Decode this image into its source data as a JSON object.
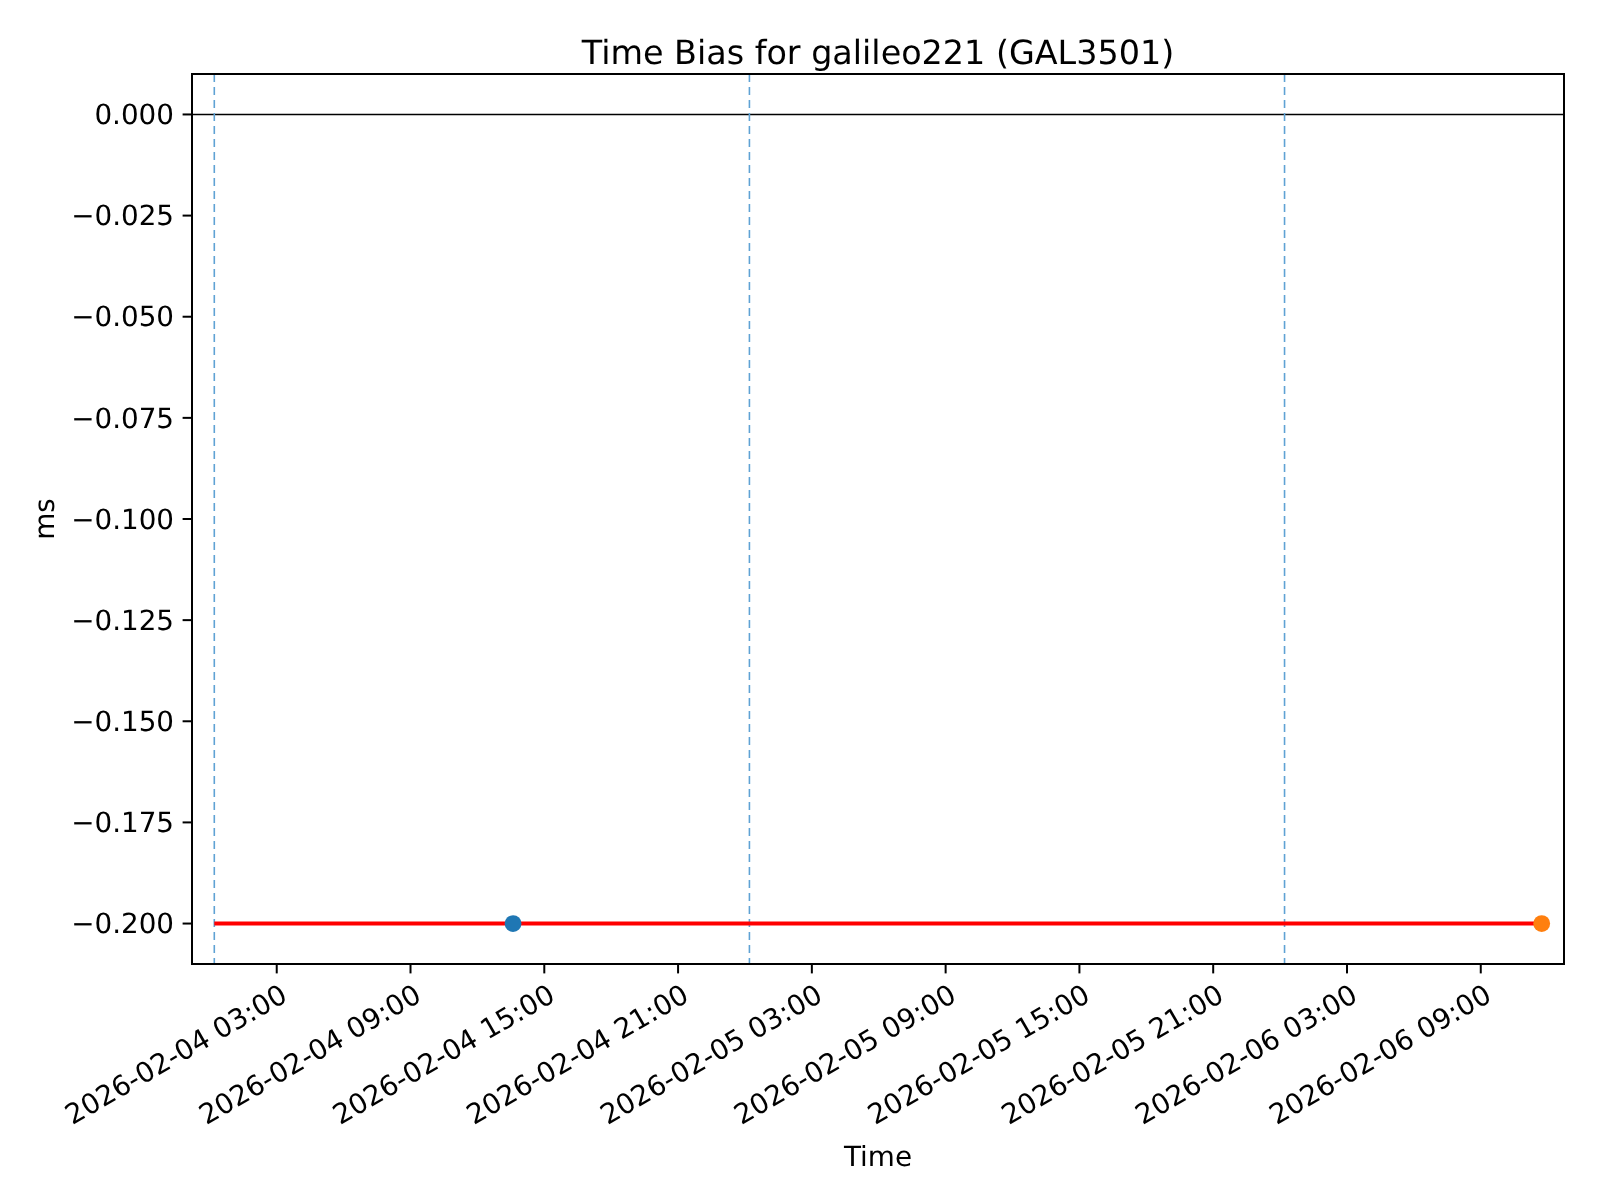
{
  "chart_data": {
    "type": "line",
    "title": "Time Bias for galileo221 (GAL3501)",
    "xlabel": "Time",
    "ylabel": "ms",
    "xlim": [
      "2026-02-03T23:12",
      "2026-02-06T12:44"
    ],
    "xticks": [
      {
        "value": "2026-02-04T03:00",
        "label": "2026-02-04 03:00"
      },
      {
        "value": "2026-02-04T09:00",
        "label": "2026-02-04 09:00"
      },
      {
        "value": "2026-02-04T15:00",
        "label": "2026-02-04 15:00"
      },
      {
        "value": "2026-02-04T21:00",
        "label": "2026-02-04 21:00"
      },
      {
        "value": "2026-02-05T03:00",
        "label": "2026-02-05 03:00"
      },
      {
        "value": "2026-02-05T09:00",
        "label": "2026-02-05 09:00"
      },
      {
        "value": "2026-02-05T15:00",
        "label": "2026-02-05 15:00"
      },
      {
        "value": "2026-02-05T21:00",
        "label": "2026-02-05 21:00"
      },
      {
        "value": "2026-02-06T03:00",
        "label": "2026-02-06 03:00"
      },
      {
        "value": "2026-02-06T09:00",
        "label": "2026-02-06 09:00"
      }
    ],
    "ylim": [
      -0.21,
      0.01
    ],
    "yticks": [
      {
        "value": 0,
        "label": "0.000"
      },
      {
        "value": -0.025,
        "label": "−0.025"
      },
      {
        "value": -0.05,
        "label": "−0.050"
      },
      {
        "value": -0.075,
        "label": "−0.075"
      },
      {
        "value": -0.1,
        "label": "−0.100"
      },
      {
        "value": -0.125,
        "label": "−0.125"
      },
      {
        "value": -0.15,
        "label": "−0.150"
      },
      {
        "value": -0.175,
        "label": "−0.175"
      },
      {
        "value": -0.2,
        "label": "−0.200"
      }
    ],
    "series": [
      {
        "color": "#ff0000",
        "x": [
          "2026-02-04T00:12",
          "2026-02-06T11:44"
        ],
        "values": [
          -0.2,
          -0.2
        ]
      },
      {
        "type": "scatter",
        "color": "#1f77b4",
        "x": [
          "2026-02-04T13:36"
        ],
        "values": [
          -0.2
        ]
      },
      {
        "type": "scatter",
        "color": "#ff7f0e",
        "x": [
          "2026-02-06T11:44"
        ],
        "values": [
          -0.2
        ]
      }
    ],
    "ref_lines": [
      {
        "axis": "y",
        "value": 0,
        "color": "#000000",
        "line_style": "solid"
      },
      {
        "axis": "x",
        "value": "2026-02-04T00:12",
        "color": "#5fa2d4",
        "line_style": "dashed"
      },
      {
        "axis": "x",
        "value": "2026-02-05T00:12",
        "color": "#5fa2d4",
        "line_style": "dashed"
      },
      {
        "axis": "x",
        "value": "2026-02-06T00:12",
        "color": "#5fa2d4",
        "line_style": "dashed"
      }
    ]
  }
}
